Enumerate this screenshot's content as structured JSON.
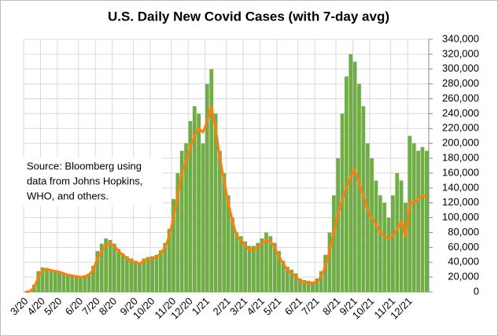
{
  "chart_data": {
    "type": "bar",
    "title": "U.S. Daily New Covid Cases (with 7-day avg)",
    "annotation": [
      "Source:  Bloomberg using",
      "data from Johns Hopkins,",
      "WHO, and others."
    ],
    "categories": [
      "3/20",
      null,
      null,
      null,
      "4/20",
      null,
      null,
      null,
      "5/20",
      null,
      null,
      null,
      null,
      "6/20",
      null,
      null,
      null,
      "7/20",
      null,
      null,
      null,
      "8/20",
      null,
      null,
      null,
      null,
      "9/20",
      null,
      null,
      null,
      "10/20",
      null,
      null,
      null,
      null,
      "11/20",
      null,
      null,
      null,
      "12/20",
      null,
      null,
      null,
      "1/21",
      null,
      null,
      null,
      null,
      "2/21",
      null,
      null,
      null,
      "3/21",
      null,
      null,
      null,
      "4/21",
      null,
      null,
      null,
      "5/21",
      null,
      null,
      null,
      null,
      "6/21",
      null,
      null,
      null,
      "7/21",
      null,
      null,
      null,
      null,
      "8/21",
      null,
      null,
      null,
      "9/21",
      null,
      null,
      null,
      "10/21",
      null,
      null,
      null,
      null,
      "11/21",
      null,
      null,
      null,
      "12/21",
      null,
      null,
      null,
      null
    ],
    "series": [
      {
        "type": "bar",
        "color": "#70ad47",
        "values": [
          0,
          2000,
          10000,
          28000,
          33000,
          32000,
          30000,
          29000,
          28000,
          26000,
          24000,
          23000,
          22000,
          21000,
          22000,
          25000,
          35000,
          55000,
          65000,
          72000,
          70000,
          65000,
          58000,
          52000,
          48000,
          45000,
          42000,
          40000,
          45000,
          47000,
          48000,
          50000,
          56000,
          66000,
          85000,
          125000,
          160000,
          190000,
          200000,
          230000,
          250000,
          240000,
          200000,
          280000,
          300000,
          240000,
          190000,
          160000,
          130000,
          100000,
          80000,
          75000,
          68000,
          62000,
          62000,
          66000,
          72000,
          80000,
          75000,
          66000,
          55000,
          42000,
          34000,
          30000,
          25000,
          18000,
          16000,
          15000,
          14000,
          18000,
          28000,
          50000,
          80000,
          130000,
          180000,
          240000,
          290000,
          320000,
          310000,
          280000,
          250000,
          200000,
          180000,
          150000,
          130000,
          120000,
          100000,
          130000,
          160000,
          150000,
          120000,
          210000,
          200000,
          190000,
          195000,
          190000
        ]
      },
      {
        "type": "line",
        "color": "#ff7f0e",
        "values": [
          0,
          1000,
          6000,
          20000,
          29000,
          31000,
          29000,
          28000,
          27000,
          25000,
          23000,
          22000,
          21000,
          20000,
          21000,
          23000,
          30000,
          45000,
          55000,
          63000,
          66000,
          62000,
          55000,
          50000,
          45000,
          42000,
          40000,
          38000,
          42000,
          44000,
          45000,
          47000,
          52000,
          60000,
          75000,
          100000,
          130000,
          160000,
          175000,
          195000,
          210000,
          220000,
          215000,
          230000,
          250000,
          220000,
          180000,
          150000,
          120000,
          95000,
          75000,
          70000,
          62000,
          57000,
          57000,
          60000,
          65000,
          70000,
          68000,
          60000,
          48000,
          38000,
          30000,
          25000,
          20000,
          15000,
          13000,
          12000,
          12000,
          14000,
          20000,
          35000,
          55000,
          80000,
          105000,
          125000,
          140000,
          155000,
          165000,
          145000,
          130000,
          110000,
          100000,
          90000,
          80000,
          75000,
          72000,
          75000,
          85000,
          95000,
          75000,
          120000,
          120000,
          125000,
          130000,
          128000
        ]
      }
    ],
    "ylim": [
      0,
      340000
    ],
    "yticks": [
      0,
      {
        "value": 20000,
        "label": "20,000"
      },
      {
        "value": 40000,
        "label": "40,000"
      },
      {
        "value": 60000,
        "label": "60,000"
      },
      {
        "value": 80000,
        "label": "80,000"
      },
      {
        "value": 100000,
        "label": "100,000"
      },
      {
        "value": 120000,
        "label": "120,000"
      },
      {
        "value": 140000,
        "label": "140,000"
      },
      {
        "value": 160000,
        "label": "160,000"
      },
      {
        "value": 180000,
        "label": "180,000"
      },
      {
        "value": 200000,
        "label": "200,000"
      },
      {
        "value": 220000,
        "label": "220,000"
      },
      {
        "value": 240000,
        "label": "240,000"
      },
      {
        "value": 260000,
        "label": "260,000"
      },
      {
        "value": 280000,
        "label": "280,000"
      },
      {
        "value": 300000,
        "label": "300,000"
      },
      {
        "value": 320000,
        "label": "320,000"
      },
      {
        "value": 340000,
        "label": "340,000"
      }
    ],
    "grid": true
  }
}
